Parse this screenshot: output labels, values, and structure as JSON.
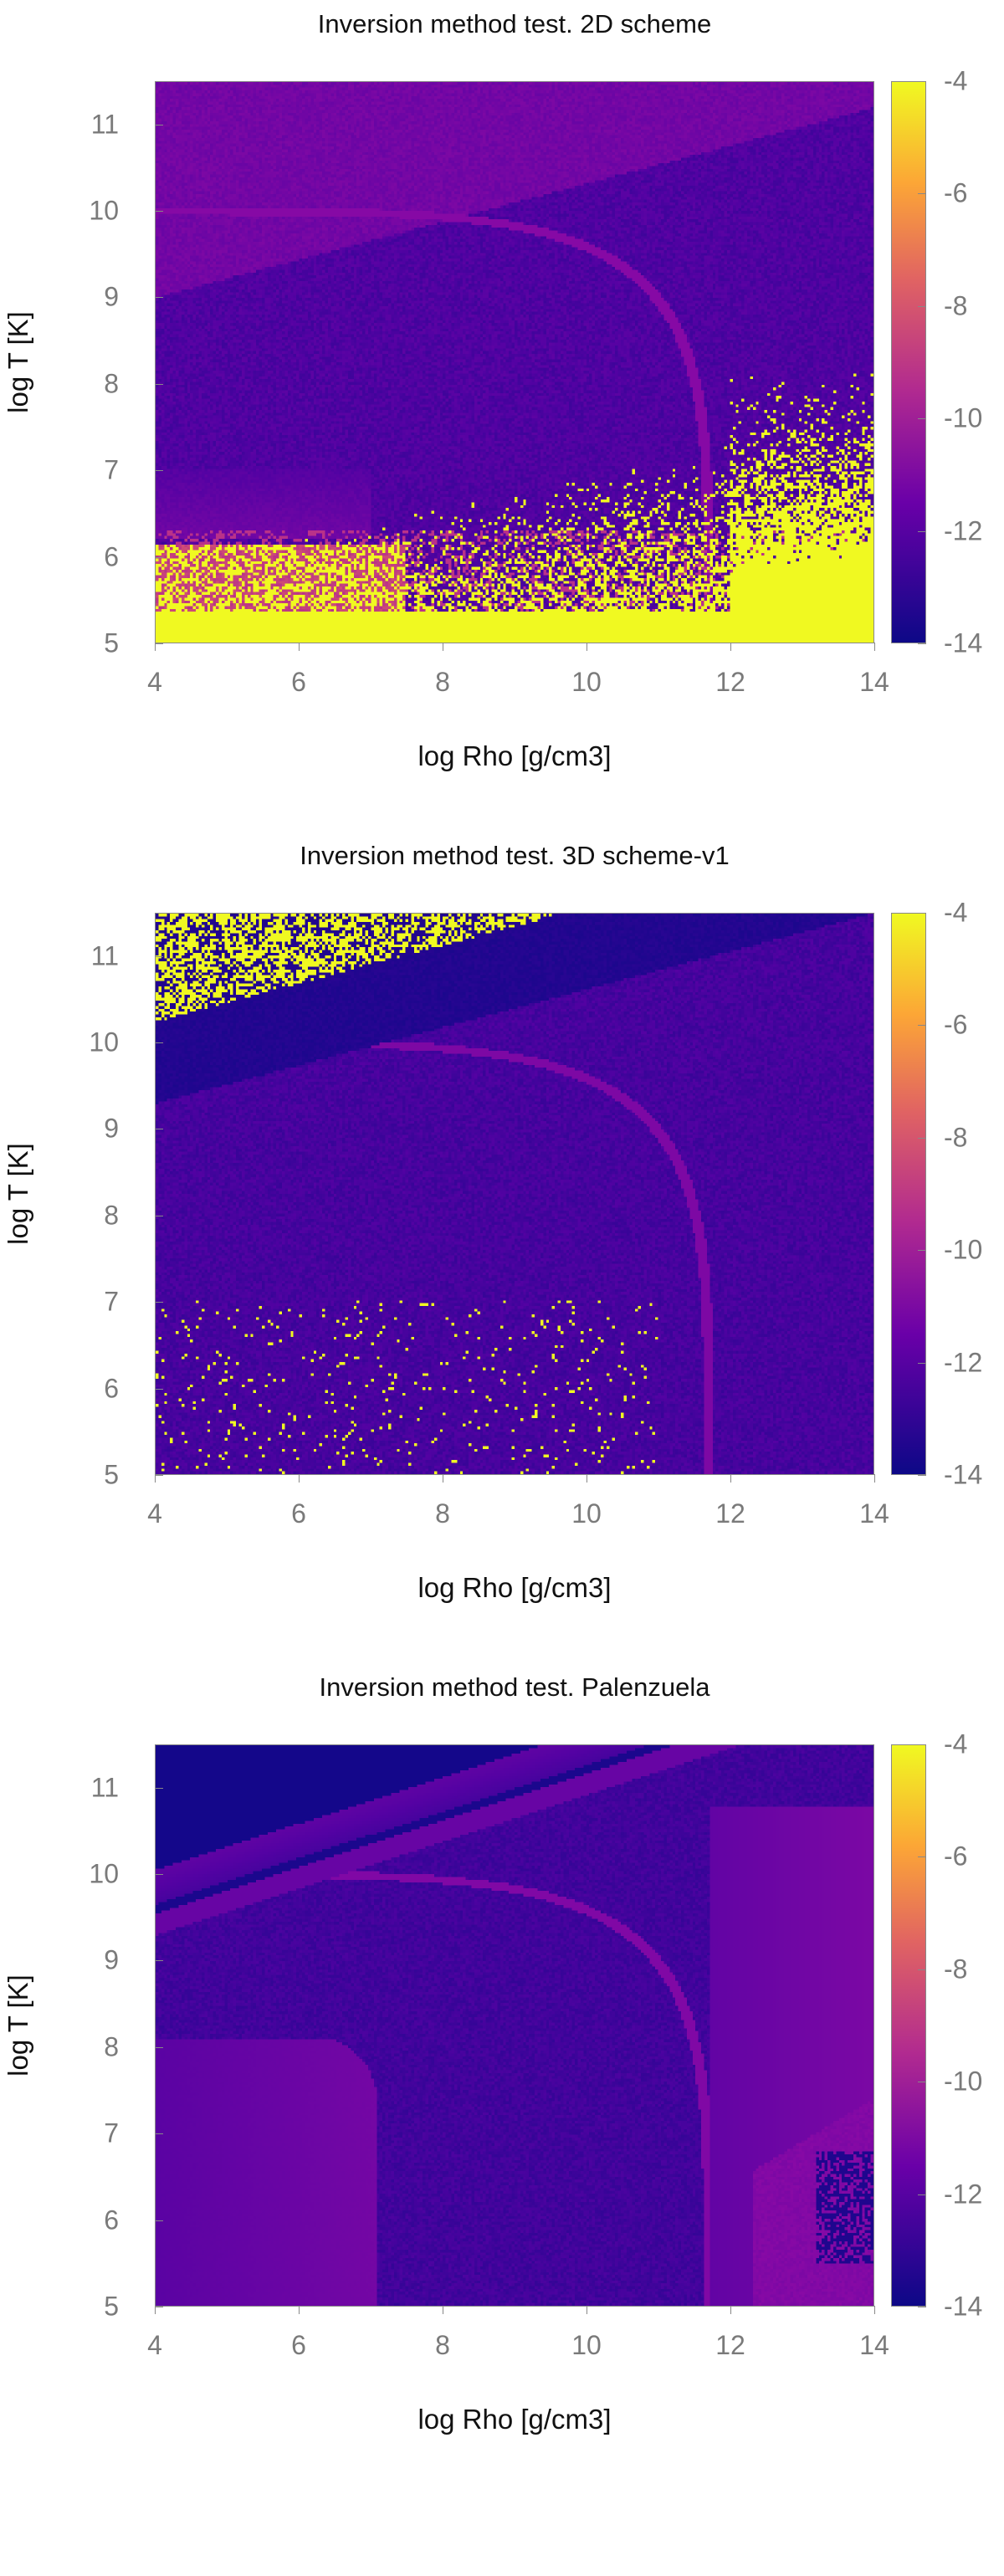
{
  "chart_data": [
    {
      "type": "heatmap",
      "title": "Inversion method test. 2D scheme",
      "xlabel": "log Rho [g/cm3]",
      "ylabel": "log T [K]",
      "xlim": [
        4,
        14
      ],
      "ylim": [
        5,
        11.5
      ],
      "zlim": [
        -14,
        -4
      ],
      "xticks": [
        "4",
        "6",
        "8",
        "10",
        "12",
        "14"
      ],
      "yticks": [
        "5",
        "6",
        "7",
        "8",
        "9",
        "10",
        "11"
      ],
      "cbticks": [
        "-4",
        "-6",
        "-8",
        "-10",
        "-12",
        "-14"
      ],
      "colormap": "plasma",
      "scheme": "2d"
    },
    {
      "type": "heatmap",
      "title": "Inversion method test. 3D scheme-v1",
      "xlabel": "log Rho [g/cm3]",
      "ylabel": "log T [K]",
      "xlim": [
        4,
        14
      ],
      "ylim": [
        5,
        11.5
      ],
      "zlim": [
        -14,
        -4
      ],
      "xticks": [
        "4",
        "6",
        "8",
        "10",
        "12",
        "14"
      ],
      "yticks": [
        "5",
        "6",
        "7",
        "8",
        "9",
        "10",
        "11"
      ],
      "cbticks": [
        "-4",
        "-6",
        "-8",
        "-10",
        "-12",
        "-14"
      ],
      "colormap": "plasma",
      "scheme": "3d"
    },
    {
      "type": "heatmap",
      "title": "Inversion method test. Palenzuela",
      "xlabel": "log Rho [g/cm3]",
      "ylabel": "log T [K]",
      "xlim": [
        4,
        14
      ],
      "ylim": [
        5,
        11.5
      ],
      "zlim": [
        -14,
        -4
      ],
      "xticks": [
        "4",
        "6",
        "8",
        "10",
        "12",
        "14"
      ],
      "yticks": [
        "5",
        "6",
        "7",
        "8",
        "9",
        "10",
        "11"
      ],
      "cbticks": [
        "-4",
        "-6",
        "-8",
        "-10",
        "-12",
        "-14"
      ],
      "colormap": "plasma",
      "scheme": "palenzuela"
    }
  ]
}
